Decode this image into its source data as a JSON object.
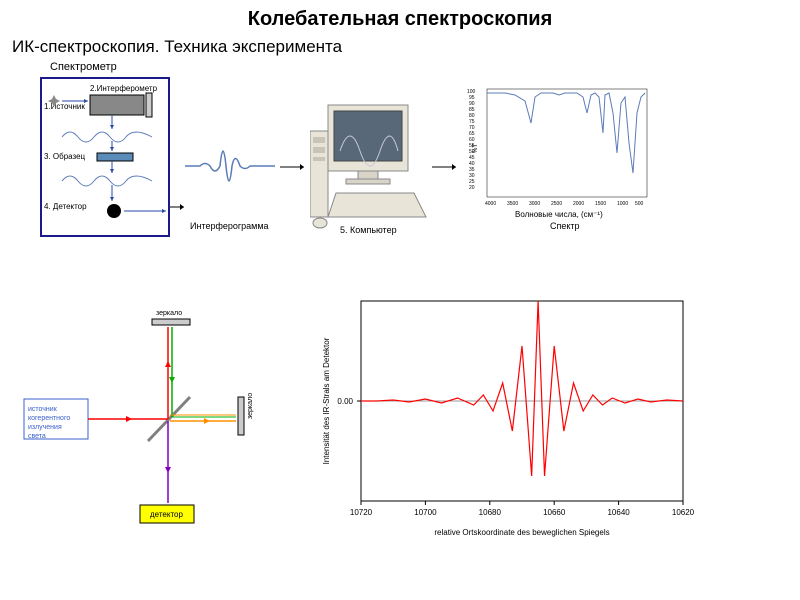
{
  "title": "Колебательная спектроскопия",
  "subtitle": "ИК-спектроскопия. Техника эксперимента",
  "top": {
    "spectrometer_label": "Спектрометр",
    "source_label": "1.Источник",
    "interferometer_label": "2.Интерферометр",
    "sample_label": "3. Образец",
    "detector_label": "4. Детектор",
    "interferogram_label": "Интерферограмма",
    "computer_label": "5. Компьютер",
    "spectrum_xlabel": "Волновые числа, (см⁻¹)",
    "spectrum_label": "Спектр",
    "box_color": "#1a1a8a",
    "wave_color": "#5b7bb8",
    "spectrum_yticks": [
      "100",
      "95",
      "90",
      "85",
      "80",
      "75",
      "70",
      "65",
      "60",
      "55",
      "50",
      "45",
      "40",
      "35",
      "30",
      "25",
      "20"
    ],
    "spectrum_xticks": [
      "4000",
      "3500",
      "3000",
      "2500",
      "2000",
      "1500",
      "1000",
      "500"
    ],
    "spectrum_color": "#5b7bb8"
  },
  "inter": {
    "source_label": "источник когерентного излучения света",
    "mirror_label": "зеркало",
    "detector_label": "детектор",
    "source_bg": "#ffffff",
    "source_border": "#3a5fcc",
    "detector_bg": "#ffff00",
    "beam_red": "#ff0000",
    "beam_green": "#00b000",
    "beam_orange": "#ff9000",
    "beam_violet": "#8000c0",
    "splitter": "#808080"
  },
  "chart": {
    "type": "line",
    "line_color": "#ff0000",
    "xlabel": "relative Ortskoordinate des beweglichen Spiegels",
    "ylabel": "Intensität des IR-Strals am Detektor",
    "yzero": "0.00",
    "xticks": [
      "10720",
      "10700",
      "10680",
      "10660",
      "10640",
      "10620"
    ],
    "xtick_positions": [
      0,
      0.2,
      0.4,
      0.6,
      0.8,
      1.0
    ],
    "data": [
      [
        0,
        0
      ],
      [
        0.05,
        0
      ],
      [
        0.1,
        0.01
      ],
      [
        0.15,
        -0.01
      ],
      [
        0.2,
        0.02
      ],
      [
        0.25,
        -0.02
      ],
      [
        0.3,
        0.03
      ],
      [
        0.35,
        -0.04
      ],
      [
        0.38,
        0.06
      ],
      [
        0.41,
        -0.1
      ],
      [
        0.44,
        0.18
      ],
      [
        0.47,
        -0.3
      ],
      [
        0.5,
        0.55
      ],
      [
        0.53,
        -0.75
      ],
      [
        0.55,
        1.0
      ],
      [
        0.57,
        -0.75
      ],
      [
        0.6,
        0.55
      ],
      [
        0.63,
        -0.3
      ],
      [
        0.66,
        0.18
      ],
      [
        0.69,
        -0.1
      ],
      [
        0.72,
        0.06
      ],
      [
        0.75,
        -0.04
      ],
      [
        0.78,
        0.03
      ],
      [
        0.82,
        -0.02
      ],
      [
        0.86,
        0.02
      ],
      [
        0.9,
        -0.01
      ],
      [
        0.95,
        0.01
      ],
      [
        1.0,
        0
      ]
    ],
    "ylim": [
      -1,
      1
    ],
    "frame_color": "#000000",
    "bg": "#ffffff"
  }
}
